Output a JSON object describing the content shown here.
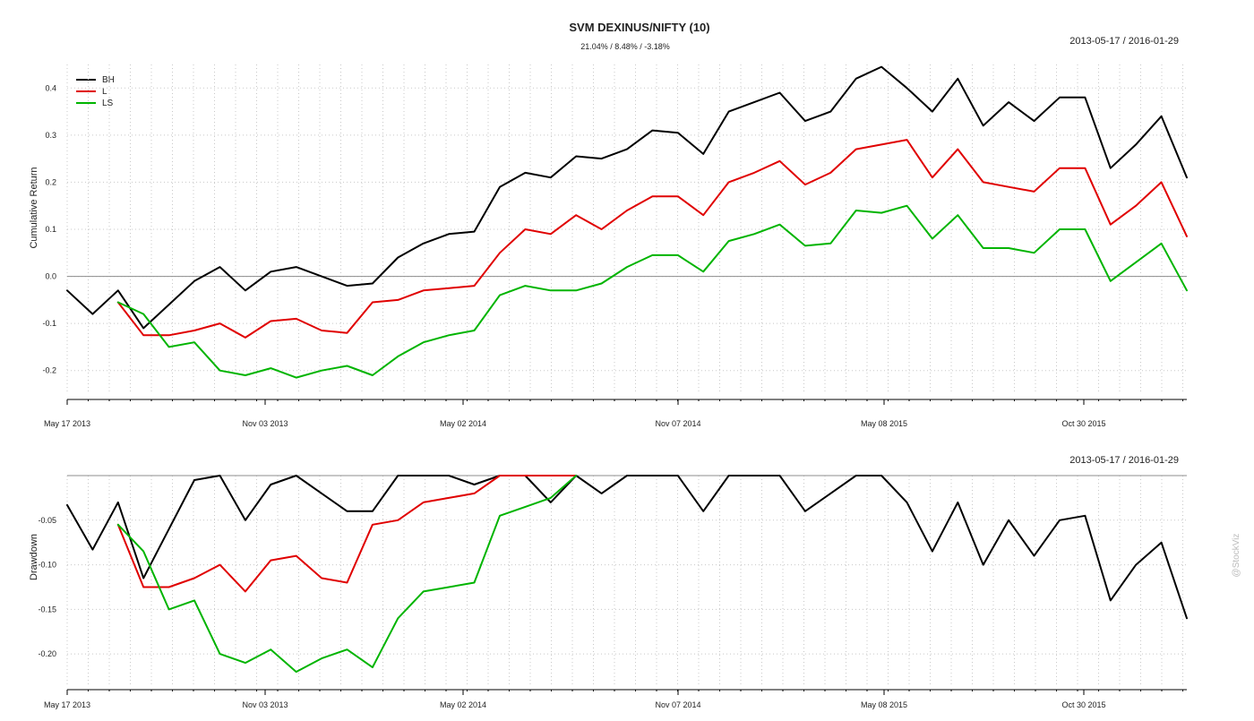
{
  "chart_data": [
    {
      "panel": "cumulative-return",
      "type": "line",
      "title": "SVM DEXINUS/NIFTY (10)",
      "subtitle": "21.04% / 8.48% / -3.18%",
      "date_range": "2013-05-17 / 2016-01-29",
      "ylabel": "Cumulative Return",
      "xlabel": "",
      "x_tick_labels": [
        "May 17 2013",
        "Nov 03 2013",
        "May 02 2014",
        "Nov 07 2014",
        "May 08 2015",
        "Oct 30 2015"
      ],
      "y_tick_labels": [
        "-0.2",
        "-0.1",
        "0.0",
        "0.1",
        "0.2",
        "0.3",
        "0.4"
      ],
      "ylim": [
        -0.25,
        0.45
      ],
      "legend": "top-left",
      "grid": true,
      "series": [
        {
          "name": "BH",
          "color": "#000000",
          "x": [
            0,
            3,
            6,
            9,
            12,
            15,
            18,
            21,
            24,
            27,
            30,
            33,
            36,
            39,
            42,
            45,
            48,
            51,
            54,
            57,
            60,
            63,
            66,
            69,
            72,
            75,
            78,
            81,
            84,
            87,
            90,
            93,
            96,
            99,
            102,
            105,
            108,
            111,
            114,
            117,
            120,
            123,
            126,
            129,
            132
          ],
          "y": [
            -0.03,
            -0.08,
            -0.03,
            -0.11,
            -0.06,
            -0.01,
            0.02,
            -0.03,
            0.01,
            0.02,
            0.0,
            -0.02,
            -0.015,
            0.04,
            0.07,
            0.09,
            0.095,
            0.19,
            0.22,
            0.21,
            0.255,
            0.25,
            0.27,
            0.31,
            0.305,
            0.26,
            0.35,
            0.37,
            0.39,
            0.33,
            0.35,
            0.42,
            0.445,
            0.4,
            0.35,
            0.42,
            0.32,
            0.37,
            0.33,
            0.38,
            0.38,
            0.23,
            0.28,
            0.34,
            0.21
          ]
        },
        {
          "name": "L",
          "color": "#e00000",
          "x": [
            6,
            9,
            12,
            15,
            18,
            21,
            24,
            27,
            30,
            33,
            36,
            39,
            42,
            45,
            48,
            51,
            54,
            57,
            60,
            63,
            66,
            69,
            72,
            75,
            78,
            81,
            84,
            87,
            90,
            93,
            96,
            99,
            102,
            105,
            108,
            111,
            114,
            117,
            120,
            123,
            126,
            129,
            132
          ],
          "y": [
            -0.055,
            -0.125,
            -0.125,
            -0.115,
            -0.1,
            -0.13,
            -0.095,
            -0.09,
            -0.115,
            -0.12,
            -0.055,
            -0.05,
            -0.03,
            -0.025,
            -0.02,
            0.05,
            0.1,
            0.09,
            0.13,
            0.1,
            0.14,
            0.17,
            0.17,
            0.13,
            0.2,
            0.22,
            0.245,
            0.195,
            0.22,
            0.27,
            0.28,
            0.29,
            0.21,
            0.27,
            0.2,
            0.19,
            0.18,
            0.23,
            0.23,
            0.11,
            0.15,
            0.2,
            0.085
          ]
        },
        {
          "name": "LS",
          "color": "#00b400",
          "x": [
            6,
            9,
            12,
            15,
            18,
            21,
            24,
            27,
            30,
            33,
            36,
            39,
            42,
            45,
            48,
            51,
            54,
            57,
            60,
            63,
            66,
            69,
            72,
            75,
            78,
            81,
            84,
            87,
            90,
            93,
            96,
            99,
            102,
            105,
            108,
            111,
            114,
            117,
            120,
            123,
            126,
            129,
            132
          ],
          "y": [
            -0.055,
            -0.08,
            -0.15,
            -0.14,
            -0.2,
            -0.21,
            -0.195,
            -0.215,
            -0.2,
            -0.19,
            -0.21,
            -0.17,
            -0.14,
            -0.125,
            -0.115,
            -0.04,
            -0.02,
            -0.03,
            -0.03,
            -0.015,
            0.02,
            0.045,
            0.045,
            0.01,
            0.075,
            0.09,
            0.11,
            0.065,
            0.07,
            0.14,
            0.135,
            0.15,
            0.08,
            0.13,
            0.06,
            0.06,
            0.05,
            0.1,
            0.1,
            -0.01,
            0.03,
            0.07,
            -0.03
          ]
        }
      ]
    },
    {
      "panel": "drawdown",
      "type": "line",
      "date_range": "2013-05-17 / 2016-01-29",
      "ylabel": "Drawdown",
      "xlabel": "",
      "x_tick_labels": [
        "May 17 2013",
        "Nov 03 2013",
        "May 02 2014",
        "Nov 07 2014",
        "May 08 2015",
        "Oct 30 2015"
      ],
      "y_tick_labels": [
        "-0.20",
        "-0.15",
        "-0.10",
        "-0.05"
      ],
      "ylim": [
        -0.235,
        0.0
      ],
      "grid": true,
      "series": [
        {
          "name": "BH",
          "color": "#000000",
          "x": [
            0,
            3,
            6,
            9,
            12,
            15,
            18,
            21,
            24,
            27,
            30,
            33,
            36,
            39,
            42,
            45,
            48,
            51,
            54,
            57,
            60,
            63,
            66,
            69,
            72,
            75,
            78,
            81,
            84,
            87,
            90,
            93,
            96,
            99,
            102,
            105,
            108,
            111,
            114,
            117,
            120,
            123,
            126,
            129,
            132
          ],
          "y": [
            -0.033,
            -0.083,
            -0.03,
            -0.115,
            -0.06,
            -0.005,
            0.0,
            -0.05,
            -0.01,
            0.0,
            -0.02,
            -0.04,
            -0.04,
            0.0,
            0.0,
            0.0,
            -0.01,
            0.0,
            0.0,
            -0.03,
            0.0,
            -0.02,
            0.0,
            0.0,
            0.0,
            -0.04,
            0.0,
            0.0,
            0.0,
            -0.04,
            -0.02,
            0.0,
            0.0,
            -0.03,
            -0.085,
            -0.03,
            -0.1,
            -0.05,
            -0.09,
            -0.05,
            -0.045,
            -0.14,
            -0.1,
            -0.075,
            -0.16
          ]
        },
        {
          "name": "L",
          "color": "#e00000",
          "x": [
            6,
            9,
            12,
            15,
            18,
            21,
            24,
            27,
            30,
            33,
            36,
            39,
            42,
            45,
            48,
            51,
            54,
            57,
            60
          ],
          "y": [
            -0.055,
            -0.125,
            -0.125,
            -0.115,
            -0.1,
            -0.13,
            -0.095,
            -0.09,
            -0.115,
            -0.12,
            -0.055,
            -0.05,
            -0.03,
            -0.025,
            -0.02,
            0.0,
            0.0,
            0.0,
            0.0
          ]
        },
        {
          "name": "LS",
          "color": "#00b400",
          "x": [
            6,
            9,
            12,
            15,
            18,
            21,
            24,
            27,
            30,
            33,
            36,
            39,
            42,
            45,
            48,
            51,
            54,
            57,
            60
          ],
          "y": [
            -0.055,
            -0.085,
            -0.15,
            -0.14,
            -0.2,
            -0.21,
            -0.195,
            -0.22,
            -0.205,
            -0.195,
            -0.215,
            -0.16,
            -0.13,
            -0.125,
            -0.12,
            -0.045,
            -0.035,
            -0.025,
            0.0
          ]
        }
      ]
    }
  ],
  "watermark": "@StockViz"
}
